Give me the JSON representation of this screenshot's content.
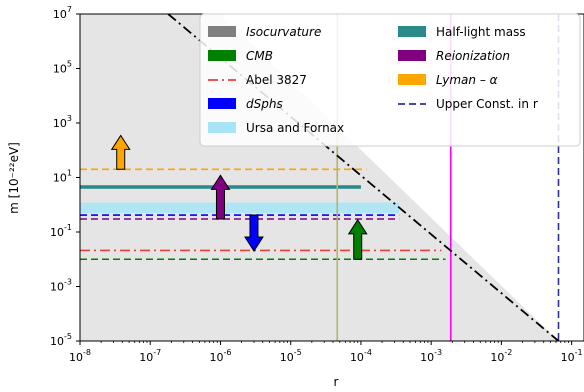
{
  "chart_data": {
    "type": "line",
    "xlabel": "r",
    "ylabel": "m [10⁻²²eV]",
    "xscale": "log",
    "yscale": "log",
    "xlim": [
      1e-08,
      0.15
    ],
    "ylim": [
      1e-05,
      10000000.0
    ],
    "x_ticks": [
      {
        "value": 1e-08,
        "exp": "-8"
      },
      {
        "value": 1e-07,
        "exp": "-7"
      },
      {
        "value": 1e-06,
        "exp": "-6"
      },
      {
        "value": 1e-05,
        "exp": "-5"
      },
      {
        "value": 0.0001,
        "exp": "-4"
      },
      {
        "value": 0.001,
        "exp": "-3"
      },
      {
        "value": 0.01,
        "exp": "-2"
      },
      {
        "value": 0.1,
        "exp": "-1"
      }
    ],
    "y_ticks": [
      {
        "value": 1e-05,
        "exp": "-5"
      },
      {
        "value": 0.001,
        "exp": "-3"
      },
      {
        "value": 0.1,
        "exp": "-1"
      },
      {
        "value": 10.0,
        "exp": "1"
      },
      {
        "value": 1000.0,
        "exp": "3"
      },
      {
        "value": 100000.0,
        "exp": "5"
      },
      {
        "value": 10000000.0,
        "exp": "7"
      }
    ],
    "tick_base": "10",
    "legend": {
      "placement": "upper-right",
      "entries": [
        {
          "label": "Isocurvature",
          "italic": true,
          "kind": "patch",
          "color": "#808080"
        },
        {
          "label": "CMB",
          "italic": true,
          "kind": "patch",
          "color": "#008000"
        },
        {
          "label": "Abel 3827",
          "italic": false,
          "kind": "dashdot",
          "color": "#e8403a"
        },
        {
          "label": "dSphs",
          "italic": true,
          "kind": "patch",
          "color": "#0000ff"
        },
        {
          "label": "Ursa and Fornax",
          "italic": false,
          "kind": "patch",
          "color": "#a8e4f5"
        },
        {
          "label": "Half-light mass",
          "italic": false,
          "kind": "patch",
          "color": "#2a8a8a"
        },
        {
          "label": "Reionization",
          "italic": true,
          "kind": "patch",
          "color": "#800080"
        },
        {
          "label": "Lyman – α",
          "italic": true,
          "kind": "patch",
          "color": "#ffa500"
        },
        {
          "label": "Upper Const. in r",
          "italic": false,
          "kind": "dashed",
          "color": "#303090"
        }
      ]
    },
    "shaded_region": {
      "name": "Isocurvature",
      "color": "#e5e5e5",
      "boundary": [
        [
          1e-08,
          10000000.0
        ],
        [
          1e-06,
          10000000.0
        ],
        [
          0.065,
          1e-05
        ]
      ]
    },
    "diagonal_boundary": {
      "style": "dashdot",
      "color": "#000000",
      "points": [
        [
          1.8e-07,
          10000000.0
        ],
        [
          0.065,
          1e-05
        ]
      ]
    },
    "horizontal_limits": [
      {
        "name": "Lyman – α",
        "y": 20,
        "x": [
          1e-08,
          0.00012
        ],
        "color": "#ffa500",
        "style": "dashed",
        "width": 1.6
      },
      {
        "name": "Half-light mass",
        "y": 4.5,
        "x": [
          1e-08,
          0.0001
        ],
        "color": "#2a8a8a",
        "style": "solid",
        "width": 3.5
      },
      {
        "name": "Ursa and Fornax",
        "y": 0.85,
        "x": [
          1e-08,
          0.00035
        ],
        "color": "#a8e4f5",
        "style": "band",
        "y_low": 0.5,
        "y_high": 1.2
      },
      {
        "name": "dSphs",
        "y": 0.42,
        "x": [
          1e-08,
          0.00035
        ],
        "color": "#0000ff",
        "style": "dashed",
        "width": 1.6
      },
      {
        "name": "Reionization",
        "y": 0.3,
        "x": [
          1e-08,
          0.00035
        ],
        "color": "#800080",
        "style": "dashed",
        "width": 1.6
      },
      {
        "name": "Abel 3827",
        "y": 0.021,
        "x": [
          1e-08,
          0.0014
        ],
        "color": "#e8403a",
        "style": "dashdot",
        "width": 1.6
      },
      {
        "name": "CMB",
        "y": 0.01,
        "x": [
          1e-08,
          0.0016
        ],
        "color": "#008000",
        "style": "dashed",
        "width": 1.6
      }
    ],
    "vertical_limits": [
      {
        "name": "olive line",
        "x": 4.6e-05,
        "color": "#b5b56a",
        "style": "solid"
      },
      {
        "name": "magenta line",
        "x": 0.0019,
        "color": "#ff00ff",
        "style": "solid"
      },
      {
        "name": "Upper Const. in r",
        "x": 0.065,
        "color": "#303090",
        "style": "dashed"
      }
    ],
    "arrows": [
      {
        "name": "Lyman – α",
        "x": 3.8e-08,
        "y_from": 20,
        "y_to": 350,
        "direction": "up",
        "color": "#ffa500"
      },
      {
        "name": "Reionization",
        "x": 1e-06,
        "y_from": 0.3,
        "y_to": 12,
        "direction": "up",
        "color": "#800080"
      },
      {
        "name": "dSphs",
        "x": 3e-06,
        "y_from": 0.42,
        "y_to": 0.02,
        "direction": "down",
        "color": "#0000ff"
      },
      {
        "name": "CMB",
        "x": 9e-05,
        "y_from": 0.01,
        "y_to": 0.28,
        "direction": "up",
        "color": "#008000"
      }
    ]
  }
}
